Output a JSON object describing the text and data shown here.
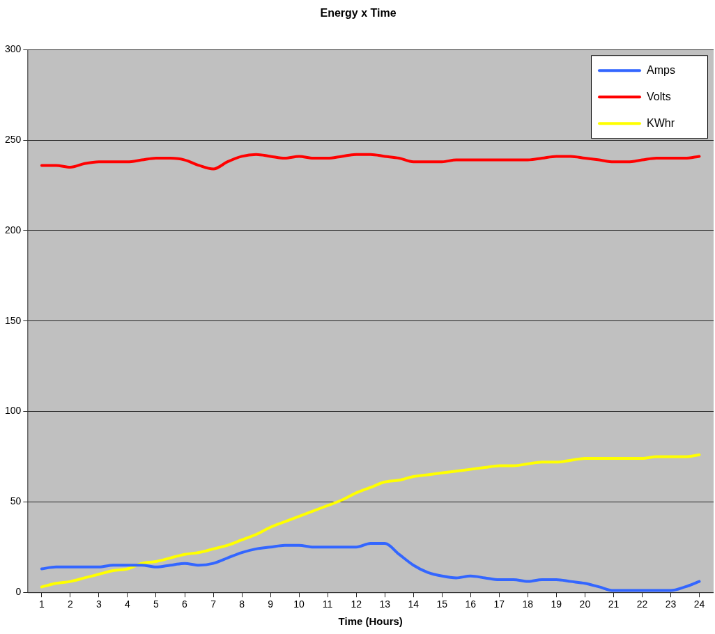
{
  "chart_data": {
    "type": "line",
    "title": "Energy x Time",
    "xlabel": "Time (Hours)",
    "x": [
      1,
      1.5,
      2,
      2.5,
      3,
      3.5,
      4,
      4.5,
      5,
      5.5,
      6,
      6.5,
      7,
      7.5,
      8,
      8.5,
      9,
      9.5,
      10,
      10.5,
      11,
      11.5,
      12,
      12.5,
      13,
      13.5,
      14,
      14.5,
      15,
      15.5,
      16,
      16.5,
      17,
      17.5,
      18,
      18.5,
      19,
      19.5,
      20,
      20.5,
      21,
      21.5,
      22,
      22.5,
      23,
      23.5,
      24
    ],
    "series": [
      {
        "name": "Amps",
        "color": "#3366ff",
        "values": [
          13,
          14,
          14,
          14,
          14,
          15,
          15,
          15,
          14,
          15,
          16,
          15,
          16,
          19,
          22,
          24,
          25,
          26,
          26,
          25,
          25,
          25,
          25,
          27,
          27,
          21,
          15,
          11,
          9,
          8,
          9,
          8,
          7,
          7,
          6,
          7,
          7,
          6,
          5,
          3,
          1,
          1,
          1,
          1,
          1,
          3,
          6
        ]
      },
      {
        "name": "Volts",
        "color": "#ff0000",
        "values": [
          236,
          236,
          235,
          237,
          238,
          238,
          238,
          239,
          240,
          240,
          239,
          236,
          234,
          238,
          241,
          242,
          241,
          240,
          241,
          240,
          240,
          241,
          242,
          242,
          241,
          240,
          238,
          238,
          238,
          239,
          239,
          239,
          239,
          239,
          239,
          240,
          241,
          241,
          240,
          239,
          238,
          238,
          239,
          240,
          240,
          240,
          241
        ]
      },
      {
        "name": "KWhr",
        "color": "#ffff00",
        "values": [
          3,
          5,
          6,
          8,
          10,
          12,
          13,
          16,
          17,
          19,
          21,
          22,
          24,
          26,
          29,
          32,
          36,
          39,
          42,
          45,
          48,
          51,
          55,
          58,
          61,
          62,
          64,
          65,
          66,
          67,
          68,
          69,
          70,
          70,
          71,
          72,
          72,
          73,
          74,
          74,
          74,
          74,
          74,
          75,
          75,
          75,
          76
        ]
      }
    ],
    "xlim": [
      0.5,
      24.5
    ],
    "xticks": [
      1,
      2,
      3,
      4,
      5,
      6,
      7,
      8,
      9,
      10,
      11,
      12,
      13,
      14,
      15,
      16,
      17,
      18,
      19,
      20,
      21,
      22,
      23,
      24
    ],
    "ylim": [
      0,
      300
    ],
    "yticks": [
      0,
      50,
      100,
      150,
      200,
      250,
      300
    ],
    "grid": "y",
    "legend": "top right",
    "marker": "none",
    "line_style": "solid"
  }
}
